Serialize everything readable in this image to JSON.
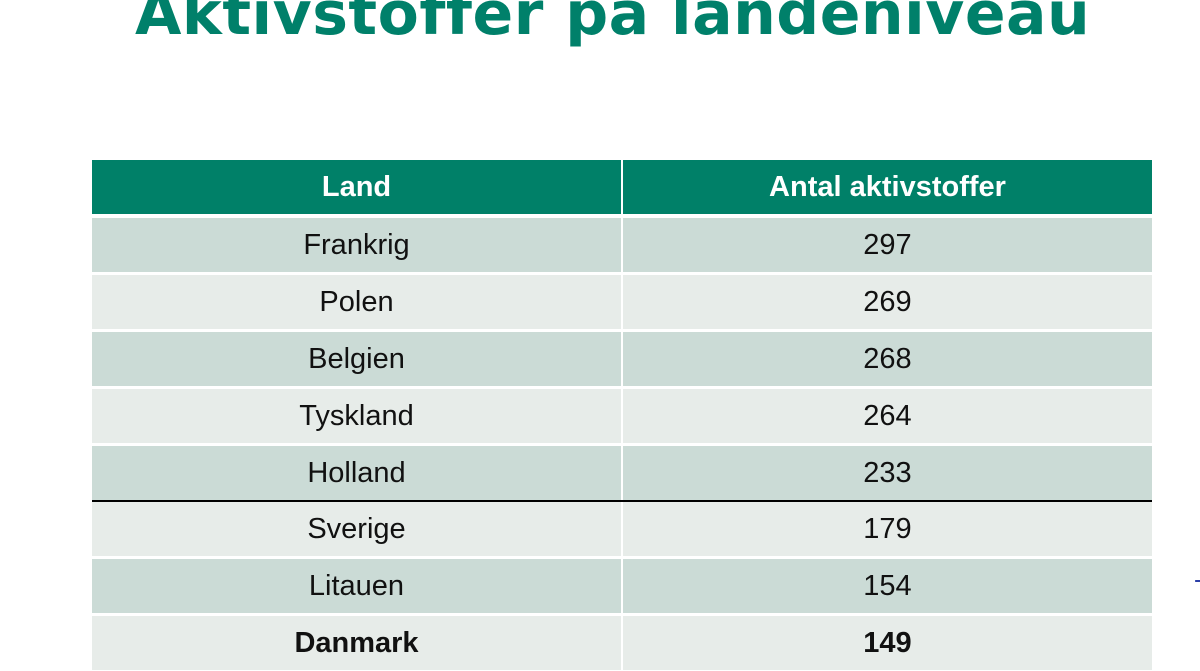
{
  "title": "Aktivstoffer på landeniveau",
  "table": {
    "headers": [
      "Land",
      "Antal aktivstoffer"
    ],
    "rows": [
      {
        "country": "Frankrig",
        "count": "297"
      },
      {
        "country": "Polen",
        "count": "269"
      },
      {
        "country": "Belgien",
        "count": "268"
      },
      {
        "country": "Tyskland",
        "count": "264"
      },
      {
        "country": "Holland",
        "count": "233"
      },
      {
        "country": "Sverige",
        "count": "179"
      },
      {
        "country": "Litauen",
        "count": "154"
      },
      {
        "country": "Danmark",
        "count": "149"
      }
    ]
  },
  "colors": {
    "title": "#00806a",
    "header_bg": "#008068",
    "row_dark": "#cbdbd6",
    "row_light": "#e7ece9"
  }
}
